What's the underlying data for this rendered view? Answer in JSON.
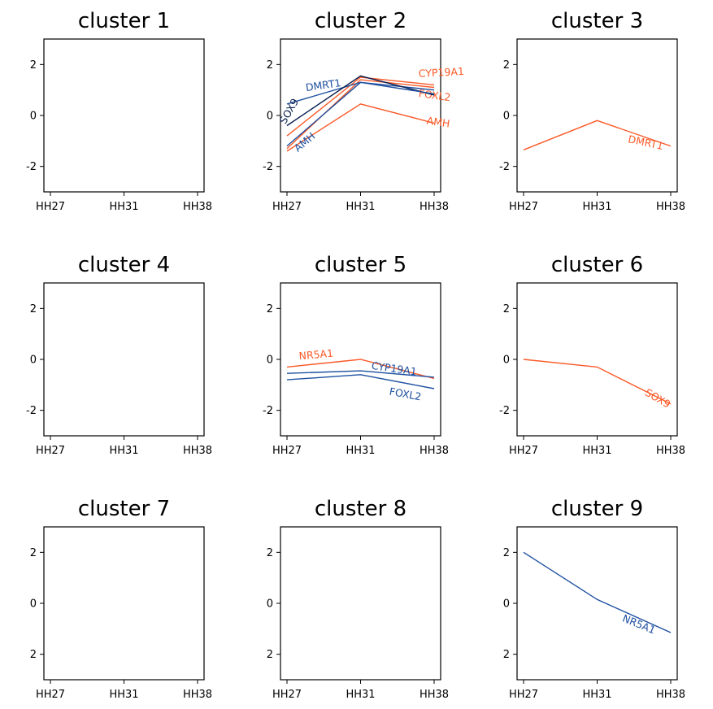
{
  "colors": {
    "up": "#fa5a28",
    "down": "#1e50a0",
    "dark": "#0a1e50"
  },
  "chart_data": [
    {
      "type": "line",
      "title": "cluster 1",
      "categories": [
        "HH27",
        "HH31",
        "HH38"
      ],
      "yticks": [
        "2",
        "0",
        "-2"
      ],
      "ylim": [
        -3,
        3
      ],
      "series": []
    },
    {
      "type": "line",
      "title": "cluster 2",
      "categories": [
        "HH27",
        "HH31",
        "HH38"
      ],
      "yticks": [
        "2",
        "0",
        "-2"
      ],
      "ylim": [
        -3,
        3
      ],
      "series": [
        {
          "name": "CYP19A1",
          "values": [
            -0.8,
            1.5,
            1.2
          ],
          "color": "#fa5a28",
          "label_at": [
            2.1,
            1.55
          ],
          "rotate": -3
        },
        {
          "name": "FOXL2",
          "values": [
            -1.3,
            1.4,
            1.1
          ],
          "color": "#fa5a28",
          "label_at": [
            2.0,
            0.65
          ],
          "rotate": 8
        },
        {
          "name": "AMH",
          "values": [
            -1.4,
            0.45,
            -0.3
          ],
          "color": "#fa5a28",
          "label_at": [
            2.05,
            -0.4
          ],
          "rotate": 8
        },
        {
          "name": "DMRT1",
          "values": [
            0.45,
            1.3,
            1.0
          ],
          "color": "#1e50a0",
          "label_at": [
            0.5,
            1.05
          ],
          "rotate": -8
        },
        {
          "name": "SOX9",
          "values": [
            -0.4,
            1.55,
            0.8
          ],
          "color": "#0a1e50",
          "label_at": [
            0.07,
            0.1
          ],
          "rotate": -60
        },
        {
          "name": "AMH",
          "values": [
            -1.2,
            1.3,
            0.85
          ],
          "color": "#1e50a0",
          "label_at": [
            0.27,
            -1.15
          ],
          "rotate": -40
        }
      ]
    },
    {
      "type": "line",
      "title": "cluster 3",
      "categories": [
        "HH27",
        "HH31",
        "HH38"
      ],
      "yticks": [
        "2",
        "0",
        "-2"
      ],
      "ylim": [
        -3,
        3
      ],
      "series": [
        {
          "name": "DMRT1",
          "values": [
            -1.35,
            -0.2,
            -1.2
          ],
          "color": "#fa5a28",
          "label_at": [
            1.65,
            -1.2
          ],
          "rotate": 12
        }
      ]
    },
    {
      "type": "line",
      "title": "cluster 4",
      "categories": [
        "HH27",
        "HH31",
        "HH38"
      ],
      "yticks": [
        "2",
        "0",
        "-2"
      ],
      "ylim": [
        -3,
        3
      ],
      "series": []
    },
    {
      "type": "line",
      "title": "cluster 5",
      "categories": [
        "HH27",
        "HH31",
        "HH38"
      ],
      "yticks": [
        "2",
        "0",
        "-2"
      ],
      "ylim": [
        -3,
        3
      ],
      "series": [
        {
          "name": "NR5A1",
          "values": [
            -0.3,
            0.0,
            -0.75
          ],
          "color": "#fa5a28",
          "label_at": [
            0.4,
            0.05
          ],
          "rotate": -5
        },
        {
          "name": "CYP19A1",
          "values": [
            -0.55,
            -0.45,
            -0.7
          ],
          "color": "#1e50a0",
          "label_at": [
            1.45,
            -0.5
          ],
          "rotate": 8
        },
        {
          "name": "FOXL2",
          "values": [
            -0.8,
            -0.6,
            -1.15
          ],
          "color": "#1e50a0",
          "label_at": [
            1.6,
            -1.5
          ],
          "rotate": 10
        }
      ]
    },
    {
      "type": "line",
      "title": "cluster 6",
      "categories": [
        "HH27",
        "HH31",
        "HH38"
      ],
      "yticks": [
        "2",
        "0",
        "-2"
      ],
      "ylim": [
        -3,
        3
      ],
      "series": [
        {
          "name": "SOX9",
          "values": [
            0.0,
            -0.3,
            -1.75
          ],
          "color": "#fa5a28",
          "label_at": [
            1.8,
            -1.65
          ],
          "rotate": 30
        }
      ]
    },
    {
      "type": "line",
      "title": "cluster 7",
      "categories": [
        "HH27",
        "HH31",
        "HH38"
      ],
      "yticks": [
        "2",
        "0",
        "2"
      ],
      "ylim": [
        -3,
        3
      ],
      "series": []
    },
    {
      "type": "line",
      "title": "cluster 8",
      "categories": [
        "HH27",
        "HH31",
        "HH38"
      ],
      "yticks": [
        "2",
        "0",
        "2"
      ],
      "ylim": [
        -3,
        3
      ],
      "series": []
    },
    {
      "type": "line",
      "title": "cluster 9",
      "categories": [
        "HH27",
        "HH31",
        "HH38"
      ],
      "yticks": [
        "2",
        "0",
        "2"
      ],
      "ylim": [
        -3,
        3
      ],
      "series": [
        {
          "name": "NR5A1",
          "values": [
            2.0,
            0.15,
            -1.15
          ],
          "color": "#1e50a0",
          "label_at": [
            1.55,
            -0.95
          ],
          "rotate": 22
        }
      ]
    }
  ]
}
